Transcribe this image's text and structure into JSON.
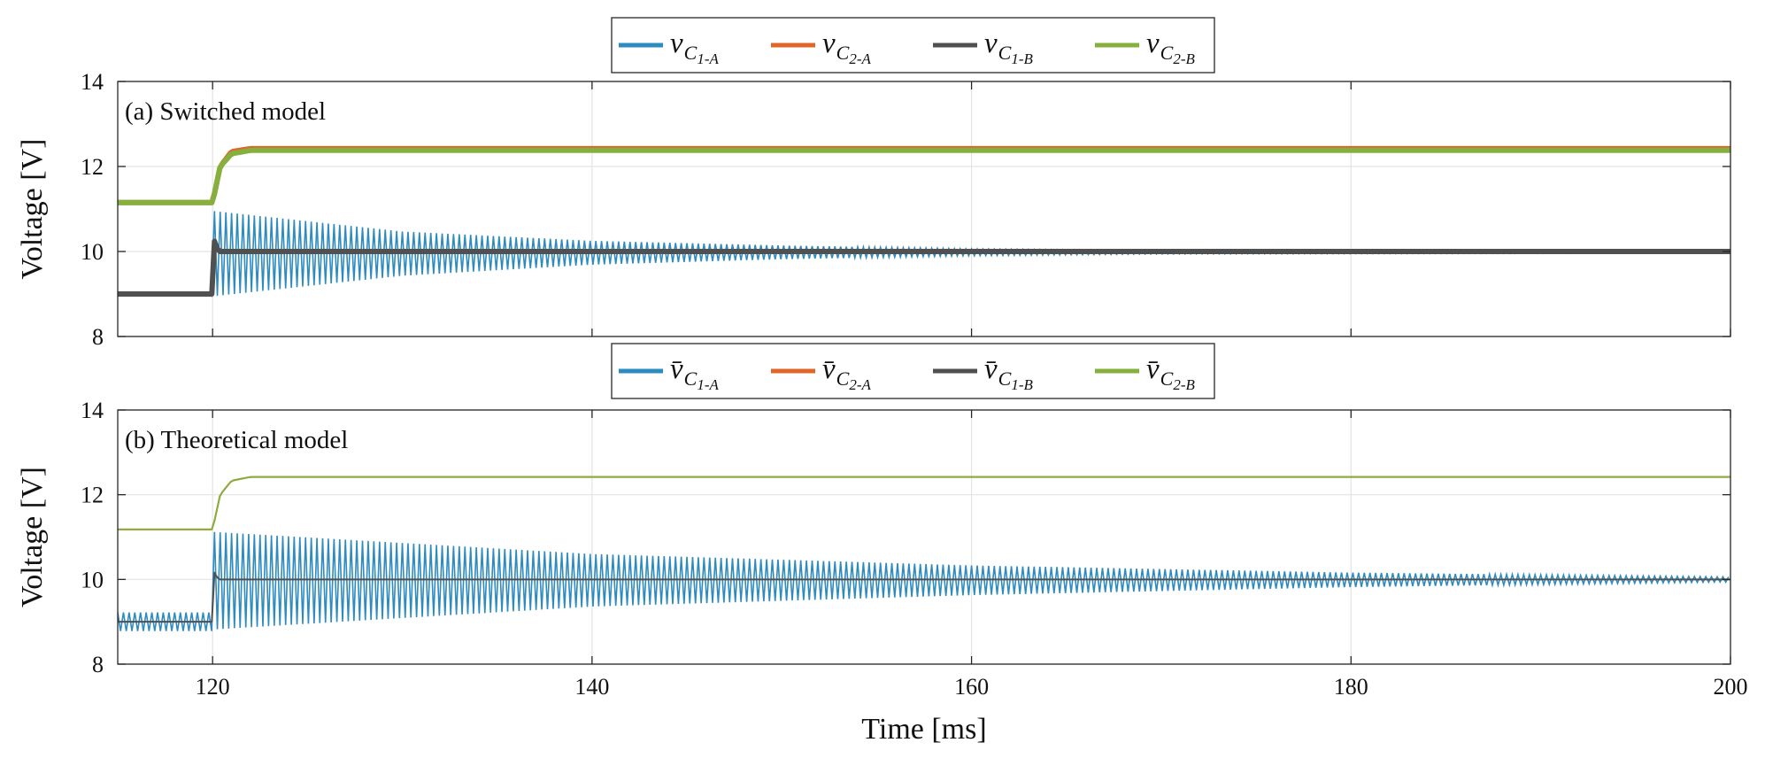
{
  "chart_data": [
    {
      "type": "line",
      "panel": "top",
      "title": "(a) Switched model",
      "xlabel": "Time [ms]",
      "ylabel": "Voltage [V]",
      "xlim": [
        115,
        200
      ],
      "ylim": [
        8,
        14
      ],
      "xticks": [
        "120",
        "140",
        "160",
        "180",
        "200"
      ],
      "yticks": [
        "8",
        "10",
        "12",
        "14"
      ],
      "grid": true,
      "legend_position": "top-center",
      "legend": [
        {
          "symbol": "v",
          "sub": "C",
          "sub2": "1-A",
          "color": "#2e8bbf"
        },
        {
          "symbol": "v",
          "sub": "C",
          "sub2": "2-A",
          "color": "#e0652a"
        },
        {
          "symbol": "v",
          "sub": "C",
          "sub2": "1-B",
          "color": "#505050"
        },
        {
          "symbol": "v",
          "sub": "C",
          "sub2": "2-B",
          "color": "#86b03d"
        }
      ],
      "series": [
        {
          "name": "vC1-A",
          "color": "#2e8bbf",
          "description": "oscillating",
          "t": [
            115,
            120,
            120.1,
            130,
            140,
            150,
            160,
            170,
            200
          ],
          "center": [
            9.0,
            9.0,
            9.95,
            9.95,
            9.97,
            9.98,
            9.98,
            9.98,
            9.98
          ],
          "amplitude": [
            0.04,
            0.04,
            1.0,
            0.52,
            0.28,
            0.16,
            0.08,
            0.04,
            0.02
          ]
        },
        {
          "name": "vC2-A",
          "color": "#e0652a",
          "t": [
            115,
            120,
            120.4,
            121,
            122,
            200
          ],
          "values": [
            11.15,
            11.15,
            12.0,
            12.35,
            12.42,
            12.42
          ]
        },
        {
          "name": "vC1-B",
          "color": "#505050",
          "t": [
            115,
            120,
            120.05,
            120.3,
            200
          ],
          "values": [
            9.0,
            9.0,
            10.3,
            10.0,
            10.0
          ]
        },
        {
          "name": "vC2-B",
          "color": "#86b03d",
          "t": [
            115,
            120,
            120.4,
            121,
            122,
            200
          ],
          "values": [
            11.15,
            11.15,
            12.0,
            12.3,
            12.38,
            12.38
          ]
        }
      ]
    },
    {
      "type": "line",
      "panel": "bottom",
      "title": "(b) Theoretical model",
      "xlabel": "Time [ms]",
      "ylabel": "Voltage [V]",
      "xlim": [
        115,
        200
      ],
      "ylim": [
        8,
        14
      ],
      "xticks": [
        "120",
        "140",
        "160",
        "180",
        "200"
      ],
      "yticks": [
        "8",
        "10",
        "12",
        "14"
      ],
      "grid": true,
      "legend_position": "top-center",
      "legend": [
        {
          "symbol": "v̄",
          "sub": "C",
          "sub2": "1-A",
          "color": "#2e8bbf"
        },
        {
          "symbol": "v̄",
          "sub": "C",
          "sub2": "2-A",
          "color": "#e0652a"
        },
        {
          "symbol": "v̄",
          "sub": "C",
          "sub2": "1-B",
          "color": "#505050"
        },
        {
          "symbol": "v̄",
          "sub": "C",
          "sub2": "2-B",
          "color": "#86b03d"
        }
      ],
      "series": [
        {
          "name": "v̄C1-A",
          "color": "#2e8bbf",
          "description": "oscillating",
          "t": [
            115,
            120,
            120.1,
            140,
            160,
            180,
            200
          ],
          "center": [
            9.0,
            9.0,
            9.97,
            9.98,
            9.98,
            9.99,
            10.0
          ],
          "amplitude": [
            0.22,
            0.22,
            1.15,
            0.62,
            0.35,
            0.17,
            0.06
          ]
        },
        {
          "name": "v̄C2-A",
          "color": "#e0652a",
          "t": [
            115,
            120,
            120.4,
            121,
            122,
            200
          ],
          "values": [
            11.18,
            11.18,
            12.0,
            12.33,
            12.42,
            12.42
          ]
        },
        {
          "name": "v̄C1-B",
          "color": "#505050",
          "t": [
            115,
            120,
            120.05,
            120.3,
            200
          ],
          "values": [
            9.0,
            9.0,
            10.2,
            10.0,
            10.0
          ]
        },
        {
          "name": "v̄C2-B",
          "color": "#86b03d",
          "t": [
            115,
            120,
            120.4,
            121,
            122,
            200
          ],
          "values": [
            11.18,
            11.18,
            12.0,
            12.33,
            12.42,
            12.42
          ]
        }
      ]
    }
  ]
}
